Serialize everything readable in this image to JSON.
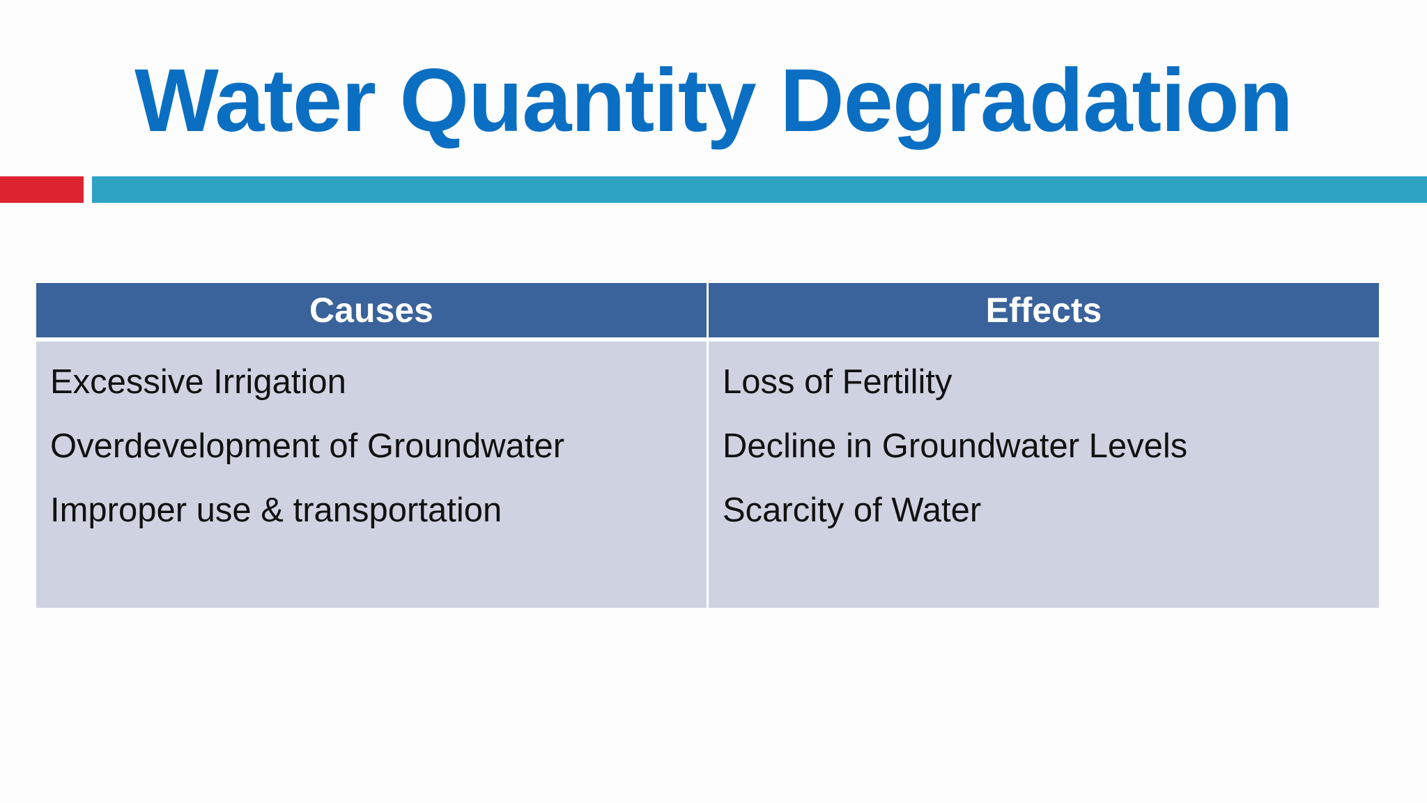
{
  "title": "Water Quantity Degradation",
  "table": {
    "columns": [
      "Causes",
      "Effects"
    ],
    "rows": [
      [
        "Excessive Irrigation",
        "Loss of Fertility"
      ],
      [
        "Overdevelopment of Groundwater",
        "Decline in Groundwater Levels"
      ],
      [
        "Improper use & transportation",
        "Scarcity of Water"
      ]
    ]
  }
}
